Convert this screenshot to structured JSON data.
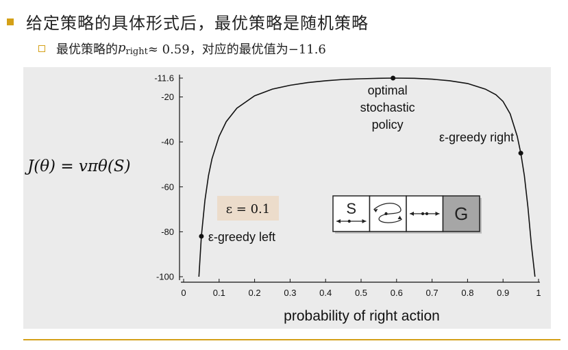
{
  "slide": {
    "heading": "给定策略的具体形式后，最优策略是随机策略",
    "sub_prefix": "最优策略的",
    "sub_p": "p",
    "sub_p_subscript": "right",
    "sub_approx": " ≈ 0.59，对应的最优值为−11.6"
  },
  "colors": {
    "accent": "#d4a017",
    "panel": "#ebebeb",
    "goal_cell": "#a6a6a6",
    "label_box": "#ecdccb"
  },
  "chart_data": {
    "type": "line",
    "xlabel": "probability of right action",
    "ylabel": "J(θ) = vπθ(S)",
    "xlim": [
      0,
      1
    ],
    "ylim": [
      -100,
      -11.6
    ],
    "x_ticks": [
      "0",
      "0.1",
      "0.2",
      "0.3",
      "0.4",
      "0.5",
      "0.6",
      "0.7",
      "0.8",
      "0.9",
      "1"
    ],
    "x_tick_values": [
      0,
      0.1,
      0.2,
      0.3,
      0.4,
      0.5,
      0.6,
      0.7,
      0.8,
      0.9,
      1
    ],
    "y_ticks": [
      "-11.6",
      "-20",
      "-40",
      "-60",
      "-80",
      "-100"
    ],
    "y_tick_values": [
      -11.6,
      -20,
      -40,
      -60,
      -80,
      -100
    ],
    "series": [
      {
        "x": [
          0.043,
          0.05,
          0.06,
          0.07,
          0.08,
          0.1,
          0.12,
          0.15,
          0.2,
          0.25,
          0.3,
          0.35,
          0.4,
          0.45,
          0.5,
          0.55,
          0.59,
          0.65,
          0.7,
          0.75,
          0.8,
          0.85,
          0.88,
          0.9,
          0.92,
          0.94,
          0.95,
          0.96,
          0.97,
          0.98,
          0.99
        ],
        "y": [
          -100,
          -82,
          -66,
          -55,
          -47.5,
          -37.5,
          -31,
          -25,
          -19.5,
          -16.5,
          -14.8,
          -13.6,
          -12.8,
          -12.2,
          -11.9,
          -11.7,
          -11.6,
          -11.7,
          -12.1,
          -12.8,
          -14,
          -16.5,
          -19,
          -22,
          -27.5,
          -37.5,
          -45,
          -55,
          -69,
          -86,
          -100
        ]
      }
    ],
    "points": [
      {
        "x": 0.59,
        "y": -11.6,
        "label": [
          "optimal",
          "stochastic",
          "policy"
        ]
      },
      {
        "x": 0.05,
        "y": -82,
        "label": [
          "ε-greedy left"
        ]
      },
      {
        "x": 0.95,
        "y": -45,
        "label": [
          "ε-greedy right"
        ]
      }
    ],
    "epsilon_label": "ε = 0.1",
    "grid": false,
    "gridworld": {
      "cells": [
        "S",
        "",
        "",
        "G"
      ]
    }
  }
}
